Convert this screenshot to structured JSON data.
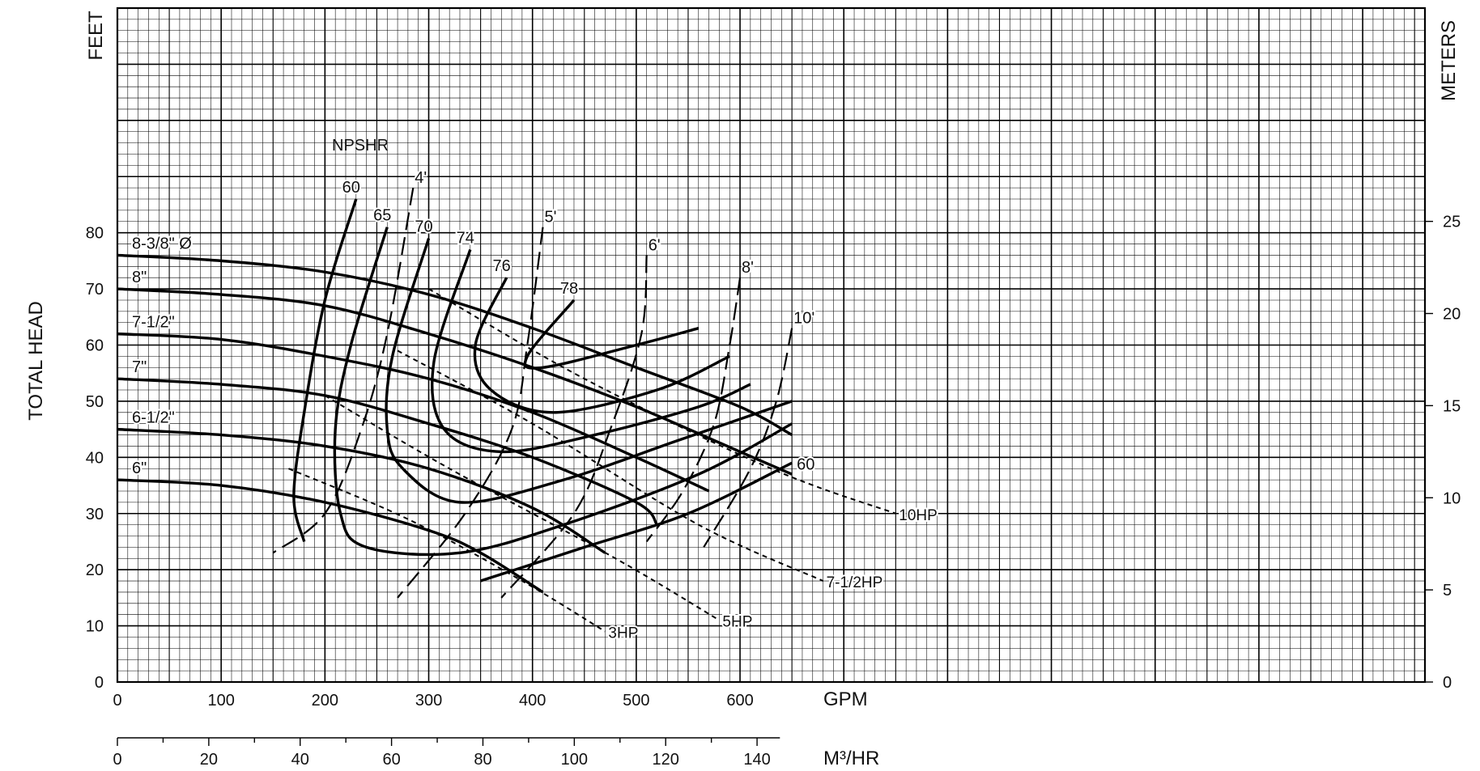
{
  "chart_data": {
    "type": "line",
    "title": "",
    "axes": {
      "left_title": "TOTAL HEAD",
      "left_unit": "FEET",
      "right_unit": "METERS",
      "x_unit_primary": "GPM",
      "x_unit_secondary": "M³/HR",
      "x_primary_ticks": [
        "0",
        "100",
        "200",
        "300",
        "400",
        "500",
        "600"
      ],
      "x_secondary_ticks": [
        "0",
        "20",
        "40",
        "60",
        "80",
        "100",
        "120",
        "140"
      ],
      "y_left_ticks": [
        "0",
        "10",
        "20",
        "30",
        "40",
        "50",
        "60",
        "70",
        "80"
      ],
      "y_right_ticks": [
        "0",
        "5",
        "10",
        "15",
        "20",
        "25"
      ],
      "xlim": [
        0,
        1260
      ],
      "ylim_feet": [
        0,
        120
      ],
      "grid": true
    },
    "impeller_curves": [
      {
        "label": "8-3/8\" Ø",
        "points": [
          [
            0,
            76
          ],
          [
            100,
            75
          ],
          [
            200,
            73
          ],
          [
            300,
            69
          ],
          [
            400,
            63
          ],
          [
            500,
            56
          ],
          [
            600,
            49
          ],
          [
            650,
            44
          ]
        ]
      },
      {
        "label": "8\"",
        "points": [
          [
            0,
            70
          ],
          [
            100,
            69
          ],
          [
            200,
            67
          ],
          [
            300,
            62
          ],
          [
            400,
            56
          ],
          [
            500,
            49
          ],
          [
            600,
            41
          ],
          [
            650,
            37
          ]
        ]
      },
      {
        "label": "7-1/2\"",
        "points": [
          [
            0,
            62
          ],
          [
            100,
            61
          ],
          [
            200,
            58
          ],
          [
            300,
            54
          ],
          [
            400,
            48
          ],
          [
            500,
            40
          ],
          [
            570,
            34
          ]
        ]
      },
      {
        "label": "7\"",
        "points": [
          [
            0,
            54
          ],
          [
            100,
            53
          ],
          [
            200,
            51
          ],
          [
            300,
            46
          ],
          [
            400,
            40
          ],
          [
            500,
            32
          ],
          [
            520,
            28
          ]
        ]
      },
      {
        "label": "6-1/2\"",
        "points": [
          [
            0,
            45
          ],
          [
            100,
            44
          ],
          [
            200,
            42
          ],
          [
            300,
            38
          ],
          [
            400,
            31
          ],
          [
            470,
            23
          ]
        ]
      },
      {
        "label": "6\"",
        "points": [
          [
            0,
            36
          ],
          [
            100,
            35
          ],
          [
            200,
            32
          ],
          [
            300,
            27
          ],
          [
            350,
            23
          ],
          [
            410,
            16
          ]
        ]
      }
    ],
    "efficiency_curves": [
      {
        "label": "60",
        "points": [
          [
            230,
            86
          ],
          [
            200,
            68
          ],
          [
            180,
            48
          ],
          [
            170,
            33
          ],
          [
            180,
            25
          ]
        ]
      },
      {
        "label": "60",
        "points": [
          [
            650,
            39
          ],
          [
            550,
            30
          ],
          [
            450,
            24
          ],
          [
            350,
            18
          ]
        ]
      },
      {
        "label": "65",
        "points": [
          [
            260,
            81
          ],
          [
            225,
            60
          ],
          [
            210,
            45
          ],
          [
            215,
            30
          ],
          [
            240,
            24
          ],
          [
            330,
            23
          ],
          [
            430,
            28
          ],
          [
            560,
            37
          ],
          [
            650,
            46
          ]
        ]
      },
      {
        "label": "70",
        "points": [
          [
            300,
            79
          ],
          [
            265,
            58
          ],
          [
            260,
            45
          ],
          [
            275,
            38
          ],
          [
            330,
            32
          ],
          [
            430,
            36
          ],
          [
            540,
            43
          ],
          [
            650,
            50
          ]
        ]
      },
      {
        "label": "74",
        "points": [
          [
            340,
            77
          ],
          [
            305,
            57
          ],
          [
            315,
            45
          ],
          [
            370,
            41
          ],
          [
            460,
            44
          ],
          [
            560,
            49
          ],
          [
            610,
            53
          ]
        ]
      },
      {
        "label": "76",
        "points": [
          [
            375,
            72
          ],
          [
            345,
            60
          ],
          [
            360,
            52
          ],
          [
            420,
            48
          ],
          [
            520,
            52
          ],
          [
            590,
            58
          ]
        ]
      },
      {
        "label": "78",
        "points": [
          [
            440,
            68
          ],
          [
            395,
            58
          ],
          [
            410,
            56
          ],
          [
            500,
            60
          ],
          [
            560,
            63
          ]
        ]
      }
    ],
    "npshr_curves": [
      {
        "label": "4'",
        "points": [
          [
            285,
            88
          ],
          [
            260,
            62
          ],
          [
            235,
            45
          ],
          [
            200,
            30
          ],
          [
            150,
            23
          ]
        ]
      },
      {
        "label": "5'",
        "points": [
          [
            410,
            81
          ],
          [
            395,
            60
          ],
          [
            380,
            45
          ],
          [
            335,
            30
          ],
          [
            270,
            15
          ]
        ]
      },
      {
        "label": "6'",
        "points": [
          [
            510,
            76
          ],
          [
            505,
            62
          ],
          [
            475,
            45
          ],
          [
            440,
            30
          ],
          [
            370,
            15
          ]
        ]
      },
      {
        "label": "8'",
        "points": [
          [
            600,
            72
          ],
          [
            590,
            60
          ],
          [
            575,
            46
          ],
          [
            545,
            34
          ],
          [
            510,
            25
          ]
        ]
      },
      {
        "label": "10'",
        "points": [
          [
            650,
            63
          ],
          [
            635,
            50
          ],
          [
            610,
            38
          ],
          [
            565,
            24
          ]
        ]
      }
    ],
    "npshr_title": "NPSHR",
    "horsepower_lines": [
      {
        "label": "3HP",
        "points": [
          [
            165,
            38
          ],
          [
            280,
            29
          ],
          [
            390,
            18
          ],
          [
            470,
            9
          ]
        ]
      },
      {
        "label": "5HP",
        "points": [
          [
            200,
            51
          ],
          [
            320,
            38
          ],
          [
            480,
            22
          ],
          [
            580,
            11
          ]
        ]
      },
      {
        "label": "7-1/2HP",
        "points": [
          [
            270,
            59
          ],
          [
            400,
            46
          ],
          [
            560,
            28
          ],
          [
            680,
            18
          ]
        ]
      },
      {
        "label": "10HP",
        "points": [
          [
            300,
            70
          ],
          [
            450,
            54
          ],
          [
            630,
            38
          ],
          [
            750,
            30
          ]
        ]
      }
    ]
  }
}
